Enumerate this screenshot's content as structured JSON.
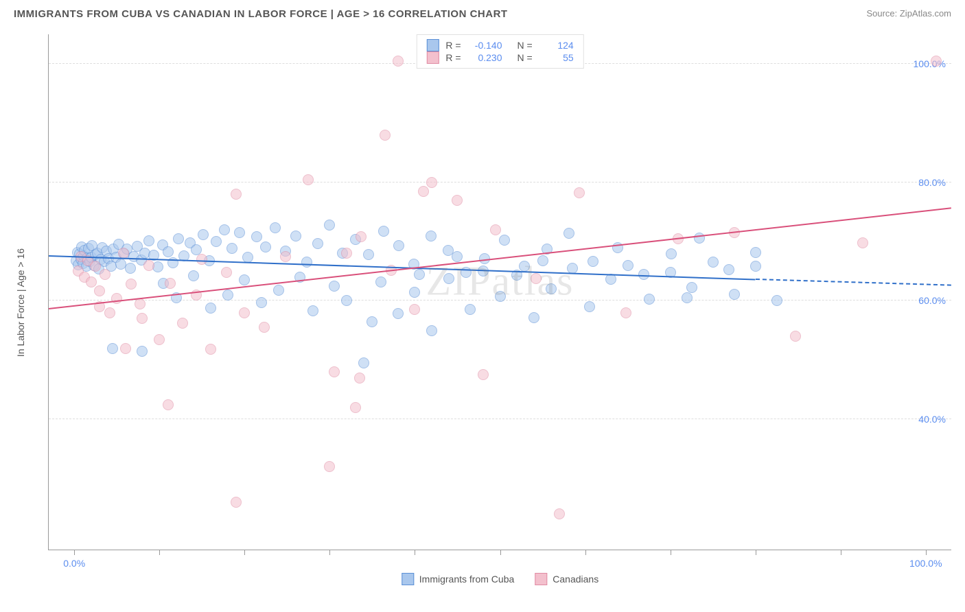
{
  "header": {
    "title": "IMMIGRANTS FROM CUBA VS CANADIAN IN LABOR FORCE | AGE > 16 CORRELATION CHART",
    "source": "Source: ZipAtlas.com"
  },
  "watermark": "ZIPatlas",
  "chart": {
    "type": "scatter",
    "yaxis_title": "In Labor Force | Age > 16",
    "background_color": "#ffffff",
    "grid_color": "#dddddd",
    "axis_color": "#999999",
    "tick_label_color": "#5b8def",
    "xlim": [
      -3,
      103
    ],
    "ylim": [
      18,
      105
    ],
    "y_ticks": [
      40,
      60,
      80,
      100
    ],
    "y_tick_labels": [
      "40.0%",
      "60.0%",
      "80.0%",
      "100.0%"
    ],
    "x_tick_positions": [
      0,
      10,
      20,
      30,
      40,
      50,
      60,
      70,
      80,
      90,
      100
    ],
    "x_major_labels": {
      "0": "0.0%",
      "100": "100.0%"
    },
    "marker_radius": 8,
    "marker_opacity": 0.55,
    "marker_stroke_width": 1.2,
    "series": [
      {
        "id": "cuba",
        "label": "Immigrants from Cuba",
        "fill": "#a9c7ed",
        "stroke": "#5a8fd6",
        "line_color": "#2f6fc9",
        "R": "-0.140",
        "N": "124",
        "regression": {
          "x1": -3,
          "y1": 67.5,
          "x2": 80,
          "y2": 63.5,
          "dash_from_x": 80,
          "dash_to_x": 103,
          "dash_y2": 62.5
        },
        "points": [
          [
            0.2,
            66.8
          ],
          [
            0.4,
            68.2
          ],
          [
            0.5,
            66.1
          ],
          [
            0.6,
            67.9
          ],
          [
            0.8,
            67.0
          ],
          [
            0.9,
            69.1
          ],
          [
            1.0,
            66.3
          ],
          [
            1.1,
            67.6
          ],
          [
            1.2,
            68.5
          ],
          [
            1.4,
            65.8
          ],
          [
            1.5,
            67.2
          ],
          [
            1.7,
            68.9
          ],
          [
            1.8,
            66.6
          ],
          [
            2.0,
            67.4
          ],
          [
            2.1,
            69.3
          ],
          [
            2.3,
            66.0
          ],
          [
            2.5,
            67.8
          ],
          [
            2.7,
            68.1
          ],
          [
            2.9,
            65.4
          ],
          [
            3.1,
            67.0
          ],
          [
            3.3,
            69.0
          ],
          [
            3.5,
            66.7
          ],
          [
            3.8,
            68.4
          ],
          [
            4.0,
            67.1
          ],
          [
            4.3,
            65.9
          ],
          [
            4.6,
            68.8
          ],
          [
            4.9,
            67.3
          ],
          [
            5.2,
            69.6
          ],
          [
            5.5,
            66.2
          ],
          [
            5.9,
            67.9
          ],
          [
            6.2,
            68.7
          ],
          [
            6.6,
            65.5
          ],
          [
            7.0,
            67.5
          ],
          [
            7.4,
            69.2
          ],
          [
            7.9,
            66.9
          ],
          [
            8.3,
            68.0
          ],
          [
            8.8,
            70.1
          ],
          [
            9.3,
            67.7
          ],
          [
            9.8,
            65.7
          ],
          [
            10.4,
            69.4
          ],
          [
            11.0,
            68.3
          ],
          [
            11.6,
            66.4
          ],
          [
            12.2,
            70.5
          ],
          [
            12.9,
            67.6
          ],
          [
            13.6,
            69.8
          ],
          [
            14.3,
            68.6
          ],
          [
            15.1,
            71.2
          ],
          [
            15.9,
            66.8
          ],
          [
            16.7,
            70.0
          ],
          [
            17.6,
            72.0
          ],
          [
            18.5,
            68.9
          ],
          [
            19.4,
            71.5
          ],
          [
            20.4,
            67.3
          ],
          [
            21.4,
            70.8
          ],
          [
            22.5,
            69.1
          ],
          [
            23.6,
            72.3
          ],
          [
            24.8,
            68.4
          ],
          [
            26.0,
            71.0
          ],
          [
            27.3,
            66.5
          ],
          [
            28.6,
            69.7
          ],
          [
            30.0,
            72.8
          ],
          [
            31.5,
            68.0
          ],
          [
            33.0,
            70.4
          ],
          [
            34.6,
            67.8
          ],
          [
            36.3,
            71.7
          ],
          [
            38.1,
            69.3
          ],
          [
            39.9,
            66.2
          ],
          [
            41.9,
            70.9
          ],
          [
            43.9,
            68.5
          ],
          [
            46.0,
            64.8
          ],
          [
            48.2,
            67.1
          ],
          [
            50.5,
            70.2
          ],
          [
            52.9,
            65.9
          ],
          [
            55.5,
            68.7
          ],
          [
            58.1,
            71.4
          ],
          [
            60.9,
            66.6
          ],
          [
            63.8,
            69.0
          ],
          [
            66.9,
            64.5
          ],
          [
            70.1,
            67.9
          ],
          [
            73.4,
            70.6
          ],
          [
            76.9,
            65.3
          ],
          [
            80.0,
            68.2
          ],
          [
            4.5,
            52.0
          ],
          [
            8.0,
            51.5
          ],
          [
            10.5,
            63.0
          ],
          [
            12.0,
            60.5
          ],
          [
            14.0,
            64.2
          ],
          [
            16.0,
            58.8
          ],
          [
            18.0,
            61.0
          ],
          [
            20.0,
            63.5
          ],
          [
            22.0,
            59.7
          ],
          [
            24.0,
            61.8
          ],
          [
            26.5,
            64.0
          ],
          [
            28.0,
            58.3
          ],
          [
            30.5,
            62.5
          ],
          [
            32.0,
            60.0
          ],
          [
            34.0,
            49.5
          ],
          [
            36.0,
            63.2
          ],
          [
            38.0,
            57.9
          ],
          [
            40.0,
            61.4
          ],
          [
            42.0,
            55.0
          ],
          [
            44.0,
            63.8
          ],
          [
            46.5,
            58.6
          ],
          [
            48.0,
            65.0
          ],
          [
            50.0,
            60.8
          ],
          [
            52.0,
            64.3
          ],
          [
            54.0,
            57.2
          ],
          [
            56.0,
            62.0
          ],
          [
            58.5,
            65.5
          ],
          [
            60.5,
            59.0
          ],
          [
            63.0,
            63.7
          ],
          [
            65.0,
            66.0
          ],
          [
            67.5,
            60.3
          ],
          [
            70.0,
            64.8
          ],
          [
            72.5,
            62.2
          ],
          [
            75.0,
            66.5
          ],
          [
            77.5,
            61.1
          ],
          [
            80.0,
            65.8
          ],
          [
            82.5,
            60.0
          ],
          [
            72.0,
            60.5
          ],
          [
            35.0,
            56.5
          ],
          [
            40.5,
            64.5
          ],
          [
            45.0,
            67.5
          ],
          [
            55.0,
            66.8
          ]
        ]
      },
      {
        "id": "canadians",
        "label": "Canadians",
        "fill": "#f3c0cd",
        "stroke": "#e08ba3",
        "line_color": "#d94f7a",
        "R": "0.230",
        "N": "55",
        "regression": {
          "x1": -3,
          "y1": 58.5,
          "x2": 103,
          "y2": 75.5
        },
        "points": [
          [
            0.5,
            65.0
          ],
          [
            0.8,
            67.5
          ],
          [
            1.2,
            64.0
          ],
          [
            1.6,
            66.8
          ],
          [
            2.0,
            63.2
          ],
          [
            2.5,
            65.8
          ],
          [
            3.0,
            61.7
          ],
          [
            3.6,
            64.5
          ],
          [
            4.2,
            58.0
          ],
          [
            5.0,
            60.4
          ],
          [
            5.8,
            68.0
          ],
          [
            6.7,
            62.8
          ],
          [
            7.7,
            59.5
          ],
          [
            8.8,
            66.0
          ],
          [
            10.0,
            53.5
          ],
          [
            11.3,
            63.0
          ],
          [
            12.7,
            56.2
          ],
          [
            14.3,
            61.0
          ],
          [
            16.0,
            51.8
          ],
          [
            17.9,
            64.8
          ],
          [
            19.0,
            78.0
          ],
          [
            20.0,
            58.0
          ],
          [
            22.3,
            55.5
          ],
          [
            24.8,
            67.5
          ],
          [
            27.5,
            80.5
          ],
          [
            30.5,
            48.0
          ],
          [
            33.0,
            42.0
          ],
          [
            33.7,
            70.8
          ],
          [
            37.2,
            65.2
          ],
          [
            41.0,
            78.5
          ],
          [
            38.0,
            100.5
          ],
          [
            32.0,
            68.0
          ],
          [
            30.0,
            32.0
          ],
          [
            33.5,
            47.0
          ],
          [
            19.0,
            26.0
          ],
          [
            49.5,
            72.0
          ],
          [
            40.0,
            58.5
          ],
          [
            45.0,
            77.0
          ],
          [
            54.2,
            63.8
          ],
          [
            57.0,
            24.0
          ],
          [
            59.3,
            78.2
          ],
          [
            64.8,
            58.0
          ],
          [
            70.9,
            70.5
          ],
          [
            77.5,
            71.5
          ],
          [
            84.7,
            54.0
          ],
          [
            92.6,
            69.8
          ],
          [
            101.2,
            100.5
          ],
          [
            36.5,
            88.0
          ],
          [
            42.0,
            80.0
          ],
          [
            48.0,
            47.5
          ],
          [
            11.0,
            42.5
          ],
          [
            6.0,
            52.0
          ],
          [
            3.0,
            59.0
          ],
          [
            8.0,
            57.0
          ],
          [
            15.0,
            67.0
          ]
        ]
      }
    ],
    "legend_bottom": [
      {
        "series": "cuba"
      },
      {
        "series": "canadians"
      }
    ]
  }
}
